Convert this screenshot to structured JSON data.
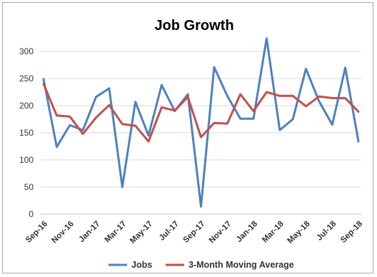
{
  "chart_data": {
    "type": "line",
    "title": "Job Growth",
    "xlabel": "",
    "ylabel": "",
    "ylim": [
      0,
      300
    ],
    "yticks": [
      0,
      50,
      100,
      150,
      200,
      250,
      300
    ],
    "grid": "horizontal",
    "legend_position": "bottom",
    "x_labels": [
      "Sep-16",
      "Nov-16",
      "Jan-17",
      "Mar-17",
      "May-17",
      "Jul-17",
      "Sep-17",
      "Nov-17",
      "Jan-18",
      "Mar-18",
      "May-18",
      "Jul-18",
      "Sep-18"
    ],
    "x": [
      "Sep-16",
      "Oct-16",
      "Nov-16",
      "Dec-16",
      "Jan-17",
      "Feb-17",
      "Mar-17",
      "Apr-17",
      "May-17",
      "Jun-17",
      "Jul-17",
      "Aug-17",
      "Sep-17",
      "Oct-17",
      "Nov-17",
      "Dec-17",
      "Jan-18",
      "Feb-18",
      "Mar-18",
      "Apr-18",
      "May-18",
      "Jun-18",
      "Jul-18",
      "Aug-18",
      "Sep-18"
    ],
    "series": [
      {
        "name": "Jobs",
        "color": "#4f81bd",
        "values": [
          249,
          124,
          164,
          155,
          216,
          232,
          50,
          207,
          145,
          238,
          190,
          221,
          14,
          271,
          218,
          176,
          176,
          324,
          155,
          175,
          268,
          208,
          165,
          270,
          134
        ]
      },
      {
        "name": "3-Month Moving Average",
        "color": "#c0504d",
        "values": [
          240,
          182,
          180,
          148,
          178,
          201,
          166,
          163,
          134,
          197,
          191,
          216,
          142,
          168,
          167,
          221,
          190,
          225,
          218,
          218,
          199,
          217,
          214,
          214,
          189
        ]
      }
    ]
  }
}
